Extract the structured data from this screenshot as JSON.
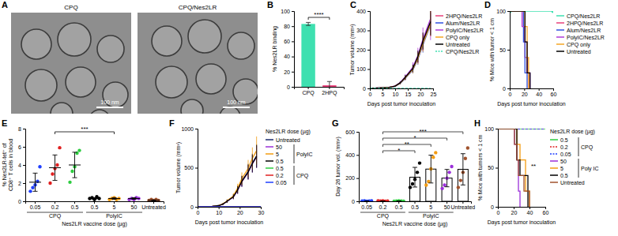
{
  "chart_data": [
    {
      "type": "micrograph",
      "panel": "A",
      "images": [
        {
          "title": "CPQ",
          "scale_bar": "100 nm"
        },
        {
          "title": "CPQ/Nes2LR",
          "scale_bar": "100 nm"
        }
      ]
    },
    {
      "type": "bar",
      "panel": "B",
      "categories": [
        "CPQ",
        "2HPQ"
      ],
      "values": [
        83,
        2
      ],
      "errors": [
        2,
        5
      ],
      "colors": [
        "#3ee0b0",
        "#e8407a"
      ],
      "ylabel": "% Nes2LR binding",
      "ylim": [
        0,
        100
      ],
      "yticks": [
        0,
        20,
        40,
        60,
        80,
        100
      ],
      "annotation": "****"
    },
    {
      "type": "line",
      "panel": "C",
      "xlabel": "Days post tumor inoculation",
      "ylabel": "Tumor volume (mm³)",
      "xlim": [
        0,
        25
      ],
      "xticks": [
        0,
        5,
        10,
        15,
        20,
        25
      ],
      "ylim": [
        0,
        400
      ],
      "yticks": [
        0,
        100,
        200,
        300,
        400
      ],
      "legend": "right",
      "series": [
        {
          "name": "2HPQ/Nes2LR",
          "color": "#e8407a",
          "x": [
            0,
            7,
            10,
            12,
            14,
            17,
            19,
            21,
            24
          ],
          "values": [
            0,
            4,
            12,
            28,
            55,
            100,
            160,
            240,
            340
          ],
          "errors": [
            0,
            1,
            3,
            6,
            12,
            20,
            30,
            45,
            70
          ]
        },
        {
          "name": "Alum/Nes2LR",
          "color": "#2f50e0",
          "x": [
            0,
            7,
            10,
            12,
            14,
            17,
            19,
            21,
            24
          ],
          "values": [
            0,
            4,
            11,
            26,
            52,
            95,
            150,
            225,
            330
          ],
          "errors": [
            0,
            1,
            3,
            6,
            10,
            18,
            28,
            40,
            60
          ]
        },
        {
          "name": "PolyIC/Nes2LR",
          "color": "#b03cd8",
          "x": [
            0,
            7,
            10,
            12,
            14,
            17,
            19,
            21,
            24
          ],
          "values": [
            0,
            5,
            13,
            30,
            60,
            110,
            170,
            255,
            360
          ],
          "errors": [
            0,
            1,
            4,
            8,
            14,
            25,
            40,
            60,
            110
          ]
        },
        {
          "name": "CPQ only",
          "color": "#f5a623",
          "x": [
            0,
            7,
            10,
            12,
            14,
            17,
            19,
            21,
            24
          ],
          "values": [
            0,
            4,
            12,
            27,
            54,
            98,
            155,
            232,
            335
          ],
          "errors": [
            0,
            1,
            3,
            5,
            11,
            20,
            30,
            42,
            65
          ]
        },
        {
          "name": "Untreated",
          "color": "#000000",
          "x": [
            0,
            7,
            10,
            12,
            14,
            17,
            19,
            21,
            24
          ],
          "values": [
            0,
            4,
            12,
            29,
            57,
            103,
            165,
            245,
            345
          ],
          "errors": [
            0,
            1,
            3,
            6,
            12,
            20,
            30,
            44,
            70
          ]
        },
        {
          "name": "CPQ/Nes2LR",
          "color": "#3ee0b0",
          "line_style": "dashed",
          "x": [
            0,
            7,
            10,
            12,
            14,
            17,
            19,
            21,
            24
          ],
          "values": [
            0,
            0,
            0,
            0,
            0,
            0,
            0,
            0,
            0
          ]
        }
      ]
    },
    {
      "type": "step",
      "panel": "D",
      "xlabel": "Days post tumor inoculation",
      "ylabel": "% Mice with tumor < 1 cm",
      "xlim": [
        0,
        60
      ],
      "xticks": [
        0,
        20,
        40,
        60
      ],
      "ylim": [
        0,
        100
      ],
      "yticks": [
        0,
        50,
        100
      ],
      "legend": "right",
      "series": [
        {
          "name": "CPQ/Nes2LR",
          "color": "#3ee0b0",
          "marker": "circle",
          "x": [
            0,
            60
          ],
          "values": [
            100,
            100
          ]
        },
        {
          "name": "2HPQ/Nes2LR",
          "color": "#e8407a",
          "x": [
            0,
            19,
            21,
            24,
            26
          ],
          "values": [
            100,
            80,
            40,
            20,
            0
          ]
        },
        {
          "name": "Alum/Nes2LR",
          "color": "#2f50e0",
          "x": [
            0,
            19,
            21,
            24
          ],
          "values": [
            100,
            60,
            20,
            0
          ]
        },
        {
          "name": "PolyIC/Nes2LR",
          "color": "#b03cd8",
          "x": [
            0,
            17,
            21,
            24,
            28
          ],
          "values": [
            100,
            80,
            60,
            20,
            0
          ]
        },
        {
          "name": "CPQ only",
          "color": "#f5a623",
          "x": [
            0,
            21,
            24,
            26
          ],
          "values": [
            100,
            80,
            40,
            0
          ]
        },
        {
          "name": "Untreated",
          "color": "#000000",
          "x": [
            0,
            21,
            24,
            28
          ],
          "values": [
            100,
            60,
            20,
            0
          ]
        }
      ]
    },
    {
      "type": "dot",
      "panel": "E",
      "categories": [
        "0.05",
        "0.2",
        "0.5",
        "0.5",
        "5",
        "50",
        "Untreated"
      ],
      "groups": [
        "CPQ",
        "CPQ",
        "CPQ",
        "PolyIC",
        "PolyIC",
        "PolyIC",
        null
      ],
      "colors": [
        "#1f3fff",
        "#e02020",
        "#2ecc40",
        "#000000",
        "#f39c12",
        "#9b30d9",
        "#a0522d"
      ],
      "points": [
        [
          1.1,
          1.5,
          1.8,
          2.2,
          3.8
        ],
        [
          2.0,
          3.0,
          3.6,
          4.0,
          5.9
        ],
        [
          2.1,
          3.3,
          3.8,
          5.3,
          5.6
        ],
        [
          0.3,
          0.4,
          0.2,
          0.5,
          0.3
        ],
        [
          0.2,
          0.3,
          0.4,
          0.2,
          0.3
        ],
        [
          0.2,
          0.3,
          0.2,
          0.4,
          0.3
        ],
        [
          0.1,
          0.2,
          0.1,
          0.2,
          0.1
        ]
      ],
      "means": [
        2.1,
        3.7,
        4.0,
        0.3,
        0.3,
        0.3,
        0.1
      ],
      "errors": [
        1.0,
        1.4,
        1.4,
        0.1,
        0.1,
        0.1,
        0.05
      ],
      "ylabel": [
        "% Nes2LR-tet⁺ of",
        "CD8⁺ T cells in blood"
      ],
      "xlabel": "Nes2LR vaccine dose (µg)",
      "ylim": [
        0,
        8
      ],
      "yticks": [
        0,
        2,
        4,
        6,
        8
      ],
      "annotation": "***"
    },
    {
      "type": "line",
      "panel": "F",
      "xlabel": "Days post tumor inoculation",
      "ylabel": "Tumor volume (mm³)",
      "xlim": [
        0,
        30
      ],
      "xticks": [
        0,
        10,
        20,
        30
      ],
      "ylim": [
        0,
        1000
      ],
      "yticks": [
        0,
        500,
        1000
      ],
      "legend": "right",
      "legend_title": "Nes2LR dose (µg)",
      "series": [
        {
          "name": "Untreated",
          "color": "#1a2a6c",
          "x": [
            0,
            7,
            10,
            12,
            14,
            17,
            19,
            21,
            24,
            26,
            28
          ],
          "values": [
            0,
            5,
            15,
            35,
            70,
            130,
            220,
            330,
            450,
            560,
            650
          ],
          "errors": [
            0,
            2,
            5,
            10,
            20,
            30,
            50,
            70,
            100,
            120,
            150
          ]
        },
        {
          "name": "50",
          "group": "PolyIC",
          "color": "#9b30d9",
          "x": [
            0,
            7,
            10,
            12,
            14,
            17,
            19,
            21,
            24,
            26,
            28
          ],
          "values": [
            0,
            5,
            14,
            33,
            68,
            125,
            210,
            320,
            440,
            550,
            640
          ],
          "errors": [
            0,
            2,
            5,
            10,
            18,
            28,
            45,
            65,
            90,
            110,
            140
          ]
        },
        {
          "name": "5",
          "group": "PolyIC",
          "color": "#f39c12",
          "x": [
            0,
            7,
            10,
            12,
            14,
            17,
            19,
            21,
            24,
            26,
            28
          ],
          "values": [
            0,
            5,
            16,
            38,
            75,
            140,
            240,
            360,
            490,
            620,
            720
          ],
          "errors": [
            0,
            2,
            5,
            12,
            22,
            35,
            55,
            80,
            110,
            140,
            180
          ]
        },
        {
          "name": "0.5",
          "group": "PolyIC",
          "color": "#000000",
          "x": [
            0,
            7,
            10,
            12,
            14,
            17,
            19,
            21,
            24,
            26,
            28
          ],
          "values": [
            0,
            5,
            15,
            34,
            70,
            128,
            215,
            325,
            445,
            555,
            645
          ],
          "errors": [
            0,
            2,
            5,
            10,
            20,
            30,
            48,
            68,
            95,
            115,
            145
          ]
        },
        {
          "name": "0.5",
          "group": "CPQ",
          "color": "#2ecc40",
          "x": [
            0,
            7,
            10,
            12,
            14,
            17,
            19,
            21,
            24,
            26,
            28,
            30
          ],
          "values": [
            0,
            0,
            0,
            0,
            0,
            0,
            0,
            0,
            0,
            0,
            0,
            0
          ]
        },
        {
          "name": "0.2",
          "group": "CPQ",
          "color": "#e02020",
          "x": [
            0,
            7,
            10,
            12,
            14,
            17,
            19,
            21,
            24,
            26,
            28,
            30
          ],
          "values": [
            0,
            0,
            0,
            0,
            0,
            0,
            0,
            0,
            0,
            0,
            0,
            0
          ]
        },
        {
          "name": "0.05",
          "group": "CPQ",
          "color": "#1f3fff",
          "x": [
            0,
            7,
            10,
            12,
            14,
            17,
            19,
            21,
            24,
            26,
            28,
            30
          ],
          "values": [
            0,
            0,
            0,
            0,
            0,
            0,
            0,
            0,
            0,
            0,
            0,
            0
          ]
        }
      ]
    },
    {
      "type": "bar",
      "panel": "G",
      "categories": [
        "0.05",
        "0.2",
        "0.5",
        "0.5",
        "5",
        "50",
        "Untreated"
      ],
      "groups": [
        "CPQ",
        "CPQ",
        "CPQ",
        "PolyIC",
        "PolyIC",
        "PolyIC",
        null
      ],
      "colors": [
        "#1f3fff",
        "#e02020",
        "#2ecc40",
        "#000000",
        "#f39c12",
        "#9b30d9",
        "#a0522d"
      ],
      "points": [
        [
          2,
          3,
          1,
          2,
          4
        ],
        [
          3,
          2,
          4,
          1,
          2
        ],
        [
          1,
          2,
          3,
          2,
          1
        ],
        [
          120,
          150,
          190,
          250,
          330
        ],
        [
          140,
          170,
          280,
          380,
          420
        ],
        [
          110,
          140,
          200,
          250,
          300
        ],
        [
          120,
          180,
          250,
          370,
          460
        ]
      ],
      "values": [
        2,
        2,
        2,
        208,
        278,
        200,
        276
      ],
      "errors": [
        1,
        1,
        1,
        85,
        120,
        75,
        135
      ],
      "ylabel": "Day 26 tumor vol. (mm³)",
      "xlabel": "Nes2LR vaccine dose (µg)",
      "ylim": [
        0,
        600
      ],
      "yticks": [
        0,
        200,
        400,
        600
      ],
      "annotations": [
        "*",
        "**",
        "*",
        "***"
      ]
    },
    {
      "type": "step",
      "panel": "H",
      "xlabel": "Days post tumor inoculation",
      "ylabel": "% Mice with tumors < 1 cm",
      "xlim": [
        0,
        60
      ],
      "xticks": [
        0,
        20,
        40,
        60
      ],
      "ylim": [
        0,
        100
      ],
      "yticks": [
        0,
        50,
        100
      ],
      "legend": "right",
      "legend_title": "Nes2LR dose (µg)",
      "annotation": "**",
      "series": [
        {
          "name": "0.5",
          "group": "CPQ",
          "color": "#2ecc40",
          "x": [
            0,
            60
          ],
          "values": [
            100,
            100
          ]
        },
        {
          "name": "0.2",
          "group": "CPQ",
          "color": "#e02020",
          "line_style": "dashed",
          "x": [
            0,
            60
          ],
          "values": [
            100,
            100
          ]
        },
        {
          "name": "0.05",
          "group": "CPQ",
          "color": "#1f3fff",
          "line_style": "dashed",
          "x": [
            0,
            60
          ],
          "values": [
            100,
            100
          ]
        },
        {
          "name": "50",
          "group": "Poly IC",
          "color": "#9b30d9",
          "x": [
            0,
            21,
            24,
            26,
            28
          ],
          "values": [
            100,
            80,
            60,
            20,
            0
          ]
        },
        {
          "name": "5",
          "group": "Poly IC",
          "color": "#f39c12",
          "x": [
            0,
            24,
            28,
            35,
            40
          ],
          "values": [
            100,
            80,
            60,
            20,
            0
          ]
        },
        {
          "name": "0.5",
          "group": "Poly IC",
          "color": "#000000",
          "x": [
            0,
            24,
            28,
            38
          ],
          "values": [
            100,
            60,
            40,
            0
          ]
        },
        {
          "name": "Untreated",
          "color": "#a0522d",
          "x": [
            0,
            21,
            24,
            26,
            33,
            40
          ],
          "values": [
            100,
            80,
            60,
            40,
            20,
            0
          ]
        }
      ]
    }
  ]
}
